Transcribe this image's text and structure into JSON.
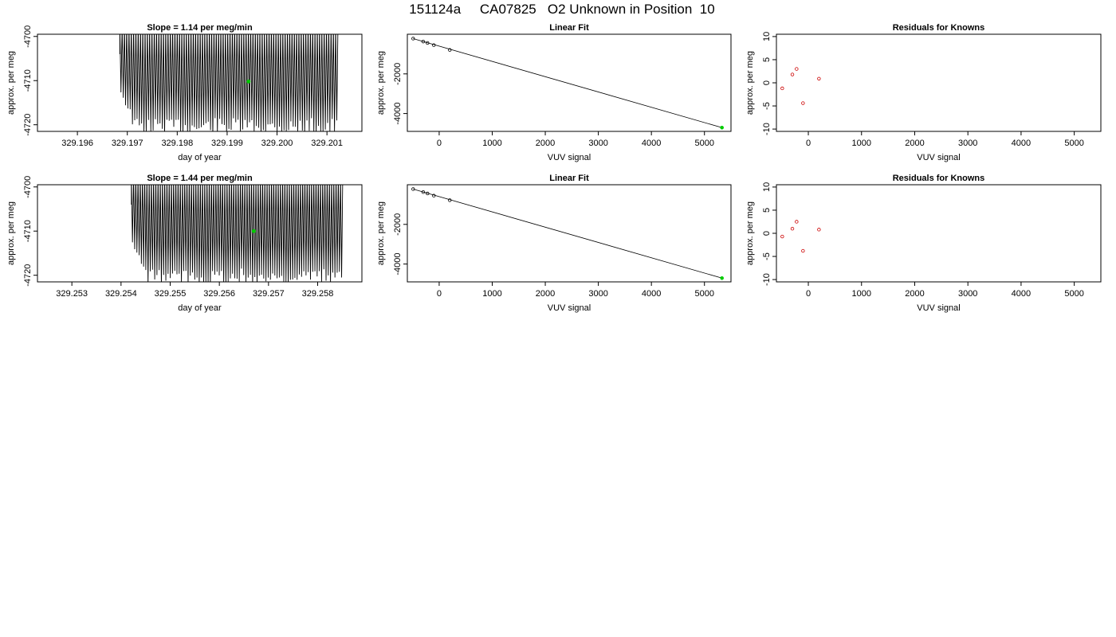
{
  "page_title": "151124a     CA07825   O2 Unknown in Position  10",
  "colors": {
    "trace": "#000000",
    "known_point": "#000000",
    "unknown_point": "#00cc00",
    "residual_point": "#cc0000"
  },
  "chart_data": [
    {
      "type": "line",
      "title": "Slope =  1.14  per meg/min",
      "xlabel": "day of year",
      "ylabel": "approx. per meg",
      "xlim": [
        329.1952,
        329.2017
      ],
      "ylim": [
        -4721.5,
        -4699.5
      ],
      "xticks": [
        329.196,
        329.197,
        329.198,
        329.199,
        329.2,
        329.201
      ],
      "xtick_labels": [
        "329.196",
        "329.197",
        "329.198",
        "329.199",
        "329.200",
        "329.201"
      ],
      "yticks": [
        -4720,
        -4710,
        -4700
      ],
      "ytick_labels": [
        "-4720",
        "-4710",
        "-4700"
      ],
      "trace": {
        "x_start": 329.19685,
        "x_end": 329.20122,
        "y_high": -4699.5,
        "y_low": -4721.5,
        "approx_cycles": 95
      },
      "marker": {
        "x": 329.19943,
        "y": -4710.2
      }
    },
    {
      "type": "scatter",
      "title": "Linear Fit",
      "xlabel": "VUV signal",
      "ylabel": "approx. per meg",
      "xlim": [
        -600,
        5500
      ],
      "ylim": [
        -4900,
        0
      ],
      "xticks": [
        0,
        1000,
        2000,
        3000,
        4000,
        5000
      ],
      "xtick_labels": [
        "0",
        "1000",
        "2000",
        "3000",
        "4000",
        "5000"
      ],
      "yticks": [
        -4000,
        -2000
      ],
      "ytick_labels": [
        "-4000",
        "-2000"
      ],
      "known_points": [
        {
          "x": -490,
          "y": -220
        },
        {
          "x": -300,
          "y": -370
        },
        {
          "x": -220,
          "y": -440
        },
        {
          "x": -100,
          "y": -550
        },
        {
          "x": 200,
          "y": -790
        }
      ],
      "unknown_point": {
        "x": 5330,
        "y": -4710
      },
      "fit_line": {
        "x1": -490,
        "y1": -220,
        "x2": 5330,
        "y2": -4710
      }
    },
    {
      "type": "scatter",
      "title": "Residuals for Knowns",
      "xlabel": "VUV signal",
      "ylabel": "approx. per meg",
      "xlim": [
        -600,
        5500
      ],
      "ylim": [
        -10.5,
        10.5
      ],
      "xticks": [
        0,
        1000,
        2000,
        3000,
        4000,
        5000
      ],
      "xtick_labels": [
        "0",
        "1000",
        "2000",
        "3000",
        "4000",
        "5000"
      ],
      "yticks": [
        -10,
        -5,
        0,
        5,
        10
      ],
      "ytick_labels": [
        "-10",
        "-5",
        "0",
        "5",
        "10"
      ],
      "points": [
        {
          "x": -490,
          "y": -1.2
        },
        {
          "x": -300,
          "y": 1.8
        },
        {
          "x": -220,
          "y": 3.0
        },
        {
          "x": -100,
          "y": -4.4
        },
        {
          "x": 200,
          "y": 0.9
        }
      ]
    },
    {
      "type": "line",
      "title": "Slope =  1.44  per meg/min",
      "xlabel": "day of year",
      "ylabel": "approx. per meg",
      "xlim": [
        329.2523,
        329.2589
      ],
      "ylim": [
        -4721.5,
        -4699.5
      ],
      "xticks": [
        329.253,
        329.254,
        329.255,
        329.256,
        329.257,
        329.258
      ],
      "xtick_labels": [
        "329.253",
        "329.254",
        "329.255",
        "329.256",
        "329.257",
        "329.258"
      ],
      "yticks": [
        -4720,
        -4710,
        -4700
      ],
      "ytick_labels": [
        "-4720",
        "-4710",
        "-4700"
      ],
      "trace": {
        "x_start": 329.25421,
        "x_end": 329.25851,
        "y_high": -4699.5,
        "y_low": -4721.5,
        "approx_cycles": 95
      },
      "marker": {
        "x": 329.2567,
        "y": -4710.0
      }
    },
    {
      "type": "scatter",
      "title": "Linear Fit",
      "xlabel": "VUV signal",
      "ylabel": "approx. per meg",
      "xlim": [
        -600,
        5500
      ],
      "ylim": [
        -4900,
        0
      ],
      "xticks": [
        0,
        1000,
        2000,
        3000,
        4000,
        5000
      ],
      "xtick_labels": [
        "0",
        "1000",
        "2000",
        "3000",
        "4000",
        "5000"
      ],
      "yticks": [
        -4000,
        -2000
      ],
      "ytick_labels": [
        "-4000",
        "-2000"
      ],
      "known_points": [
        {
          "x": -490,
          "y": -220
        },
        {
          "x": -300,
          "y": -370
        },
        {
          "x": -220,
          "y": -440
        },
        {
          "x": -100,
          "y": -550
        },
        {
          "x": 200,
          "y": -780
        }
      ],
      "unknown_point": {
        "x": 5330,
        "y": -4710
      },
      "fit_line": {
        "x1": -490,
        "y1": -220,
        "x2": 5330,
        "y2": -4710
      }
    },
    {
      "type": "scatter",
      "title": "Residuals for Knowns",
      "xlabel": "VUV signal",
      "ylabel": "approx. per meg",
      "xlim": [
        -600,
        5500
      ],
      "ylim": [
        -10.5,
        10.5
      ],
      "xticks": [
        0,
        1000,
        2000,
        3000,
        4000,
        5000
      ],
      "xtick_labels": [
        "0",
        "1000",
        "2000",
        "3000",
        "4000",
        "5000"
      ],
      "yticks": [
        -10,
        -5,
        0,
        5,
        10
      ],
      "ytick_labels": [
        "-10",
        "-5",
        "0",
        "5",
        "10"
      ],
      "points": [
        {
          "x": -490,
          "y": -0.7
        },
        {
          "x": -300,
          "y": 1.0
        },
        {
          "x": -220,
          "y": 2.5
        },
        {
          "x": -100,
          "y": -3.8
        },
        {
          "x": 200,
          "y": 0.8
        }
      ]
    }
  ]
}
